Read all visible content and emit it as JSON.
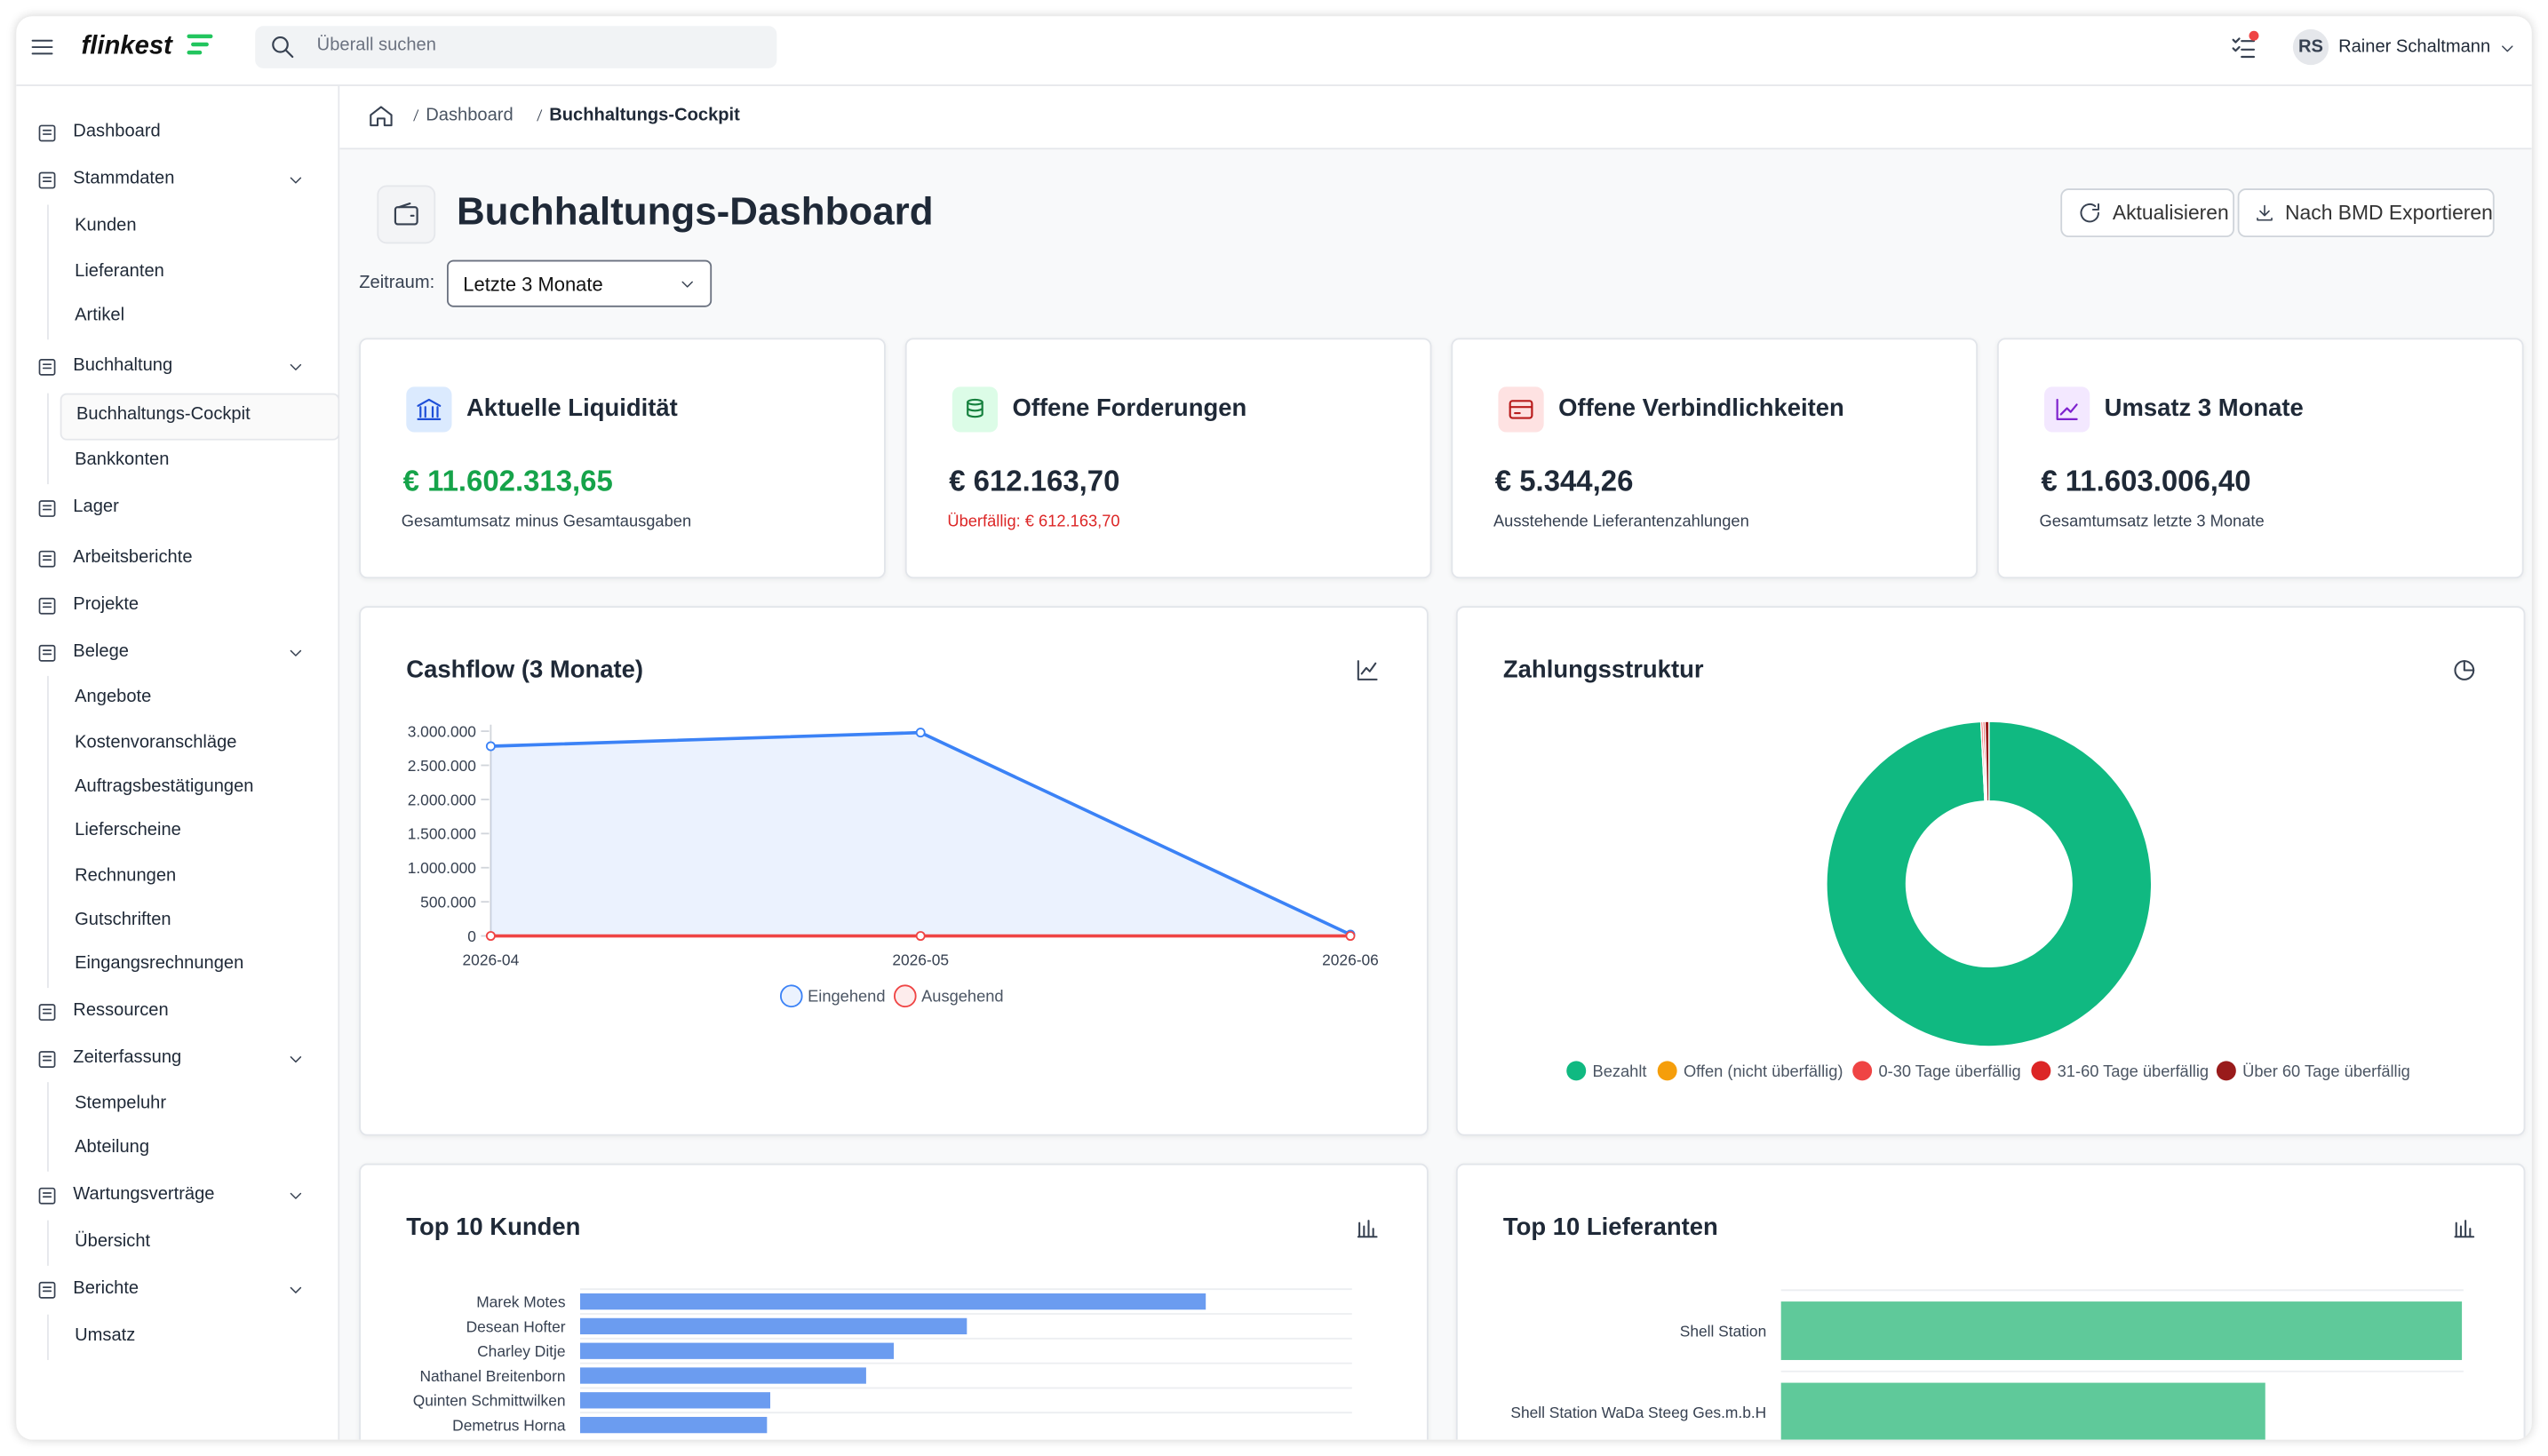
{
  "header": {
    "logo": "flinkest",
    "search_placeholder": "Überall suchen",
    "user_initials": "RS",
    "user_name": "Rainer Schaltmann"
  },
  "sidebar": [
    {
      "label": "Dashboard"
    },
    {
      "label": "Stammdaten",
      "children": [
        "Kunden",
        "Lieferanten",
        "Artikel"
      ]
    },
    {
      "label": "Buchhaltung",
      "children": [
        "Buchhaltungs-Cockpit",
        "Bankkonten"
      ]
    },
    {
      "label": "Lager"
    },
    {
      "label": "Arbeitsberichte"
    },
    {
      "label": "Projekte"
    },
    {
      "label": "Belege",
      "children": [
        "Angebote",
        "Kostenvoranschläge",
        "Auftragsbestätigungen",
        "Lieferscheine",
        "Rechnungen",
        "Gutschriften",
        "Eingangsrechnungen"
      ]
    },
    {
      "label": "Ressourcen"
    },
    {
      "label": "Zeiterfassung",
      "children": [
        "Stempeluhr",
        "Abteilung"
      ]
    },
    {
      "label": "Wartungsverträge",
      "children": [
        "Übersicht"
      ]
    },
    {
      "label": "Berichte",
      "children": [
        "Umsatz"
      ]
    }
  ],
  "breadcrumb": [
    "Dashboard",
    "Buchhaltungs-Cockpit"
  ],
  "page": {
    "title": "Buchhaltungs-Dashboard",
    "buttons": [
      "Aktualisieren",
      "Nach BMD Exportieren"
    ],
    "filter_label": "Zeitraum:",
    "filter_value": "Letzte 3 Monate"
  },
  "kpis": [
    {
      "title": "Aktuelle Liquidität",
      "value": "€ 11.602.313,65",
      "sub": "Gesamtumsatz minus Gesamtausgaben"
    },
    {
      "title": "Offene Forderungen",
      "value": "€ 612.163,70",
      "sub": "Überfällig: € 612.163,70"
    },
    {
      "title": "Offene Verbindlichkeiten",
      "value": "€ 5.344,26",
      "sub": "Ausstehende Lieferantenzahlungen"
    },
    {
      "title": "Umsatz 3 Monate",
      "value": "€ 11.603.006,40",
      "sub": "Gesamtumsatz letzte 3 Monate"
    }
  ],
  "chart_data": [
    {
      "type": "line",
      "title": "Cashflow (3 Monate)",
      "x": [
        "2026-04",
        "2026-05",
        "2026-06"
      ],
      "series": [
        {
          "name": "Eingehend",
          "color": "#3b82f6",
          "values": [
            2780000,
            2980000,
            20000
          ]
        },
        {
          "name": "Ausgehend",
          "color": "#ef4444",
          "values": [
            0,
            0,
            0
          ]
        }
      ],
      "ylim": [
        0,
        3000000
      ],
      "yticks": [
        {
          "value": 3000000,
          "label": "3.000.000"
        },
        {
          "value": 2500000,
          "label": "2.500.000"
        },
        {
          "value": 2000000,
          "label": "2.000.000"
        },
        {
          "value": 1500000,
          "label": "1.500.000"
        },
        {
          "value": 1000000,
          "label": "1.000.000"
        },
        {
          "value": 500000,
          "label": "500.000"
        },
        0
      ]
    },
    {
      "type": "pie",
      "title": "Zahlungsstruktur",
      "categories": [
        "Bezahlt",
        "Offen (nicht überfällig)",
        "0-30 Tage überfällig",
        "31-60 Tage überfällig",
        "Über 60 Tage überfällig"
      ],
      "values": [
        99.2,
        0,
        0.2,
        0.2,
        0.4
      ],
      "colors": [
        "#10b981",
        "#f59e0b",
        "#ef4444",
        "#dc2626",
        "#991b1b"
      ]
    },
    {
      "type": "hbar",
      "title": "Top 10 Kunden",
      "categories": [
        "Marek Motes",
        "Desean Hofter",
        "Charley Ditje",
        "Nathanel Breitenborn",
        "Quinten Schmittwilken",
        "Demetrus Horna"
      ],
      "values": [
        385,
        238,
        193,
        176,
        117,
        115
      ],
      "xlim": [
        0,
        475
      ],
      "color": "#6b9cf0"
    },
    {
      "type": "hbar",
      "title": "Top 10 Lieferanten",
      "categories": [
        "Shell Station",
        "Shell Station WaDa Steeg Ges.m.b.H"
      ],
      "values": [
        419,
        298
      ],
      "xlim": [
        0,
        420
      ],
      "color": "#5fc99a"
    }
  ]
}
